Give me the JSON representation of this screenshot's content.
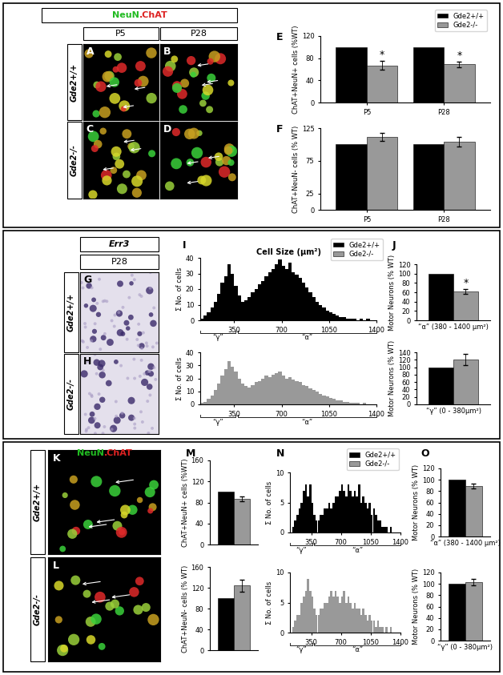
{
  "chart_data": [
    {
      "panel": "E",
      "type": "bar",
      "categories": [
        "P5",
        "P28"
      ],
      "ylabel": "ChAT+NeuN+ cells (%WT)",
      "ylim": [
        0,
        120
      ],
      "yticks": [
        0,
        40,
        80,
        120
      ],
      "legend": "upper right",
      "series": [
        {
          "name": "Gde2+/+",
          "color": "#000000",
          "values": [
            100,
            100
          ]
        },
        {
          "name": "Gde2-/-",
          "color": "#999999",
          "values": [
            67,
            69
          ],
          "errors": [
            8,
            5
          ]
        }
      ],
      "annotations": [
        {
          "text": "*",
          "series": 1,
          "index": 0
        },
        {
          "text": "*",
          "series": 1,
          "index": 1
        }
      ]
    },
    {
      "panel": "F",
      "type": "bar",
      "categories": [
        "P5",
        "P28"
      ],
      "ylabel": "ChAT+NeuN- cells (% WT)",
      "ylim": [
        0,
        125
      ],
      "yticks": [
        0,
        25,
        75,
        125
      ],
      "series": [
        {
          "name": "Gde2+/+",
          "color": "#000000",
          "values": [
            100,
            100
          ]
        },
        {
          "name": "Gde2-/-",
          "color": "#999999",
          "values": [
            112,
            104
          ],
          "errors": [
            6,
            7
          ]
        }
      ]
    },
    {
      "panel": "I",
      "type": "histogram",
      "title": "Cell Size (μm²)",
      "ylabel": "Σ No. of cells",
      "bins": [
        100,
        125,
        150,
        175,
        200,
        225,
        250,
        275,
        300,
        325,
        350,
        375,
        400,
        425,
        450,
        475,
        500,
        525,
        550,
        575,
        600,
        625,
        650,
        675,
        700,
        725,
        750,
        775,
        800,
        825,
        850,
        875,
        900,
        925,
        950,
        975,
        1000,
        1025,
        1050,
        1075,
        1100,
        1125,
        1150,
        1175,
        1200,
        1225,
        1250,
        1275,
        1300,
        1325,
        1350,
        1375,
        1400
      ],
      "xlim": [
        100,
        1400
      ],
      "xticks": [
        350,
        700,
        1050,
        1400
      ],
      "ylim": [
        0,
        40
      ],
      "yticks": [
        0,
        10,
        20,
        30,
        40
      ],
      "legend": "upper right",
      "ranges": [
        {
          "label": "“γ”",
          "from": 100,
          "to": 360
        },
        {
          "label": "“α”",
          "from": 380,
          "to": 1400
        }
      ],
      "series": [
        {
          "name": "Gde2+/+",
          "color": "#000000",
          "counts": [
            1,
            3,
            5,
            8,
            12,
            17,
            24,
            28,
            36,
            30,
            22,
            16,
            12,
            13,
            15,
            18,
            20,
            23,
            25,
            28,
            31,
            33,
            36,
            39,
            35,
            33,
            37,
            31,
            29,
            27,
            24,
            21,
            18,
            15,
            12,
            10,
            8,
            6,
            5,
            4,
            3,
            2,
            2,
            1,
            1,
            1,
            0,
            1,
            0,
            1,
            0,
            0
          ]
        },
        {
          "name": "Gde2-/-",
          "color": "#999999",
          "counts": [
            1,
            2,
            4,
            7,
            11,
            16,
            22,
            27,
            33,
            29,
            25,
            20,
            16,
            14,
            13,
            15,
            17,
            18,
            20,
            22,
            21,
            23,
            24,
            25,
            22,
            20,
            21,
            19,
            18,
            17,
            15,
            14,
            12,
            11,
            10,
            8,
            7,
            6,
            5,
            4,
            3,
            3,
            2,
            2,
            1,
            1,
            1,
            0,
            1,
            0,
            0,
            0
          ]
        }
      ]
    },
    {
      "panel": "J",
      "type": "bar",
      "xlabel": "“α” (380 - 1400 μm²)",
      "ylabel": "Motor Neurons (% WT)",
      "ylim": [
        0,
        120
      ],
      "yticks": [
        0,
        20,
        40,
        60,
        80,
        100,
        120
      ],
      "tick_labels": "y",
      "series": [
        {
          "name": "Gde2+/+",
          "color": "#000000",
          "values": [
            100
          ]
        },
        {
          "name": "Gde2-/-",
          "color": "#999999",
          "values": [
            62
          ],
          "errors": [
            5
          ]
        }
      ],
      "annotations": [
        {
          "text": "*",
          "series": 1,
          "index": 0
        }
      ]
    },
    {
      "type": "bar",
      "xlabel": "“γ” (0 - 380μm²)",
      "ylabel": "Motor Neurons (% WT)",
      "ylim": [
        0,
        140
      ],
      "yticks": [
        0,
        20,
        40,
        60,
        80,
        100,
        120,
        140
      ],
      "tick_labels": "y",
      "series": [
        {
          "name": "Gde2+/+",
          "color": "#000000",
          "values": [
            100
          ]
        },
        {
          "name": "Gde2-/-",
          "color": "#999999",
          "values": [
            120
          ],
          "errors": [
            15
          ]
        }
      ]
    },
    {
      "panel": "M",
      "type": "bar",
      "ylabel": "ChAT+NeuN+ cells (%WT)",
      "ylim": [
        0,
        160
      ],
      "yticks": [
        0,
        40,
        80,
        120,
        160
      ],
      "tick_labels": "y",
      "series": [
        {
          "name": "Gde2+/+",
          "color": "#000000",
          "values": [
            100
          ]
        },
        {
          "name": "Gde2-/-",
          "color": "#999999",
          "values": [
            87
          ],
          "errors": [
            4
          ]
        }
      ]
    },
    {
      "type": "bar",
      "ylabel": "ChAT+NeuN- cells (% WT)",
      "ylim": [
        0,
        160
      ],
      "yticks": [
        0,
        40,
        80,
        120,
        160
      ],
      "tick_labels": "y",
      "series": [
        {
          "name": "Gde2+/+",
          "color": "#000000",
          "values": [
            100
          ]
        },
        {
          "name": "Gde2-/-",
          "color": "#999999",
          "values": [
            124
          ],
          "errors": [
            12
          ]
        }
      ]
    },
    {
      "panel": "N",
      "type": "histogram",
      "ylabel": "Σ No. of cells",
      "bins": [
        100,
        125,
        150,
        175,
        200,
        225,
        250,
        275,
        300,
        325,
        350,
        375,
        400,
        425,
        450,
        475,
        500,
        525,
        550,
        575,
        600,
        625,
        650,
        675,
        700,
        725,
        750,
        775,
        800,
        825,
        850,
        875,
        900,
        925,
        950,
        975,
        1000,
        1025,
        1050,
        1075,
        1100,
        1125,
        1150,
        1175,
        1200,
        1225,
        1250,
        1275,
        1300,
        1325,
        1350,
        1375,
        1400
      ],
      "xlim": [
        100,
        1400
      ],
      "xticks": [
        350,
        700,
        1050,
        1400
      ],
      "ylim": [
        0,
        10
      ],
      "yticks": [
        0,
        5,
        10
      ],
      "legend": "upper right",
      "ranges": [
        {
          "label": "“γ”",
          "from": 100,
          "to": 360
        },
        {
          "label": "“α”",
          "from": 380,
          "to": 1400
        }
      ],
      "series": [
        {
          "name": "Gde2+/+",
          "color": "#000000",
          "counts": [
            0,
            1,
            2,
            3,
            4,
            5,
            7,
            8,
            6,
            8,
            5,
            3,
            2,
            2,
            3,
            3,
            4,
            4,
            5,
            4,
            5,
            6,
            6,
            7,
            8,
            7,
            6,
            8,
            7,
            6,
            7,
            6,
            8,
            5,
            6,
            5,
            4,
            5,
            3,
            4,
            3,
            2,
            2,
            1,
            1,
            1,
            0,
            1,
            0,
            0,
            0,
            0
          ]
        },
        {
          "name": "Gde2-/-",
          "color": "#999999",
          "counts": [
            0,
            1,
            2,
            3,
            3,
            5,
            6,
            7,
            9,
            7,
            6,
            4,
            3,
            3,
            4,
            4,
            5,
            5,
            6,
            7,
            6,
            7,
            6,
            5,
            6,
            7,
            5,
            6,
            5,
            4,
            5,
            4,
            4,
            3,
            4,
            3,
            2,
            3,
            2,
            2,
            1,
            2,
            1,
            1,
            0,
            1,
            0,
            1,
            0,
            0,
            0,
            0
          ]
        }
      ]
    },
    {
      "panel": "O",
      "type": "bar",
      "xlabel": "“α” (380 - 1400 μm²)",
      "ylabel": "Motor Neurons (% WT)",
      "ylim": [
        0,
        120
      ],
      "yticks": [
        0,
        20,
        40,
        60,
        80,
        100,
        120
      ],
      "tick_labels": "y",
      "series": [
        {
          "name": "Gde2+/+",
          "color": "#000000",
          "values": [
            100
          ]
        },
        {
          "name": "Gde2-/-",
          "color": "#999999",
          "values": [
            89
          ],
          "errors": [
            4
          ]
        }
      ]
    },
    {
      "type": "bar",
      "xlabel": "“γ” (0 - 380μm²)",
      "ylabel": "Motor Neurons (% WT)",
      "ylim": [
        0,
        120
      ],
      "yticks": [
        0,
        20,
        40,
        60,
        80,
        100,
        120
      ],
      "tick_labels": "y",
      "series": [
        {
          "name": "Gde2+/+",
          "color": "#000000",
          "values": [
            100
          ]
        },
        {
          "name": "Gde2-/-",
          "color": "#999999",
          "values": [
            103
          ],
          "errors": [
            6
          ]
        }
      ]
    }
  ],
  "image_sections": [
    {
      "stain": [
        {
          "text": "NeuN",
          "color": "#22bb22"
        },
        {
          "text": ".ChAT",
          "color": "#dd2222"
        }
      ],
      "columns": [
        "P5",
        "P28"
      ],
      "rows": [
        "Gde2+/+",
        "Gde2-/-"
      ],
      "panels": [
        "A",
        "B",
        "C",
        "D"
      ]
    },
    {
      "stain": [
        {
          "text": "Err3",
          "color": "#000000"
        }
      ],
      "columns": [
        "P28"
      ],
      "rows": [
        "Gde2+/+",
        "Gde2-/-"
      ],
      "panels": [
        "G",
        "H"
      ]
    },
    {
      "stain": [
        {
          "text": "NeuN",
          "color": "#22bb22"
        },
        {
          "text": ".ChAT",
          "color": "#dd2222"
        }
      ],
      "columns": [],
      "rows": [
        "Gde2+/+",
        "Gde2-/-"
      ],
      "panels": [
        "K",
        "L"
      ]
    }
  ]
}
